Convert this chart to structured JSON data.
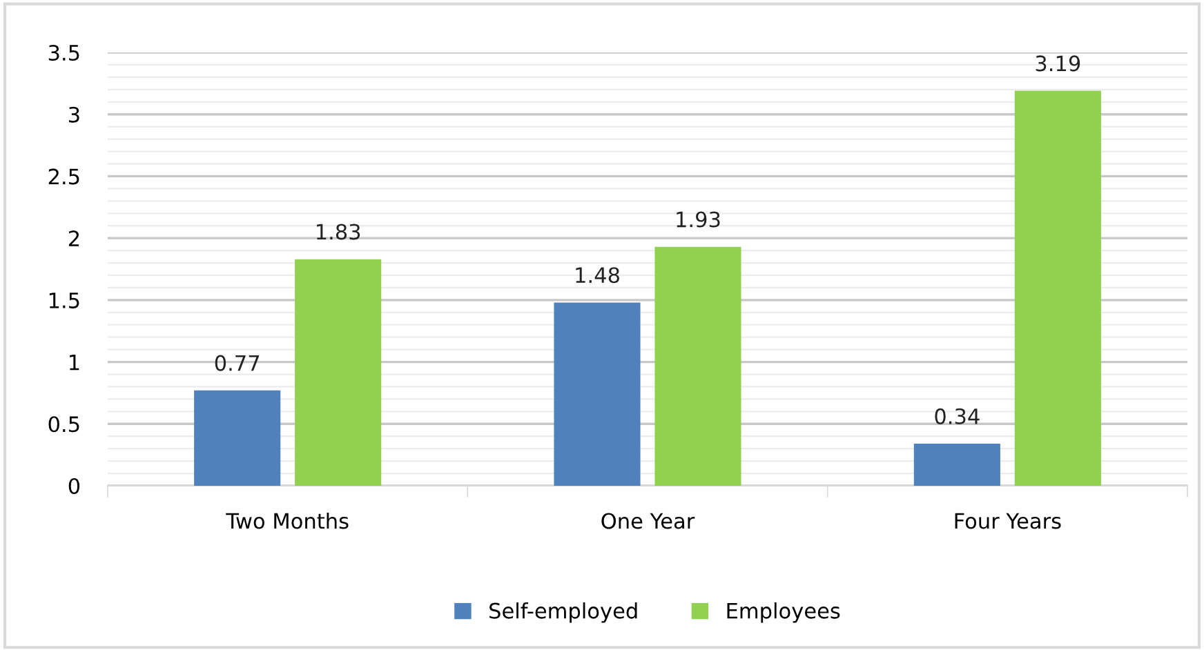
{
  "chart_data": {
    "type": "bar",
    "categories": [
      "Two Months",
      "One Year",
      "Four Years"
    ],
    "series": [
      {
        "name": "Self-employed",
        "color": "#4f81bd",
        "values": [
          0.77,
          1.48,
          0.34
        ]
      },
      {
        "name": "Employees",
        "color": "#92d050",
        "values": [
          1.83,
          1.93,
          3.19
        ]
      }
    ],
    "ylim": [
      0,
      3.5
    ],
    "yticks": [
      0,
      0.5,
      1,
      1.5,
      2,
      2.5,
      3,
      3.5
    ],
    "grid": "y",
    "legend": "bottom",
    "data_labels": true
  }
}
